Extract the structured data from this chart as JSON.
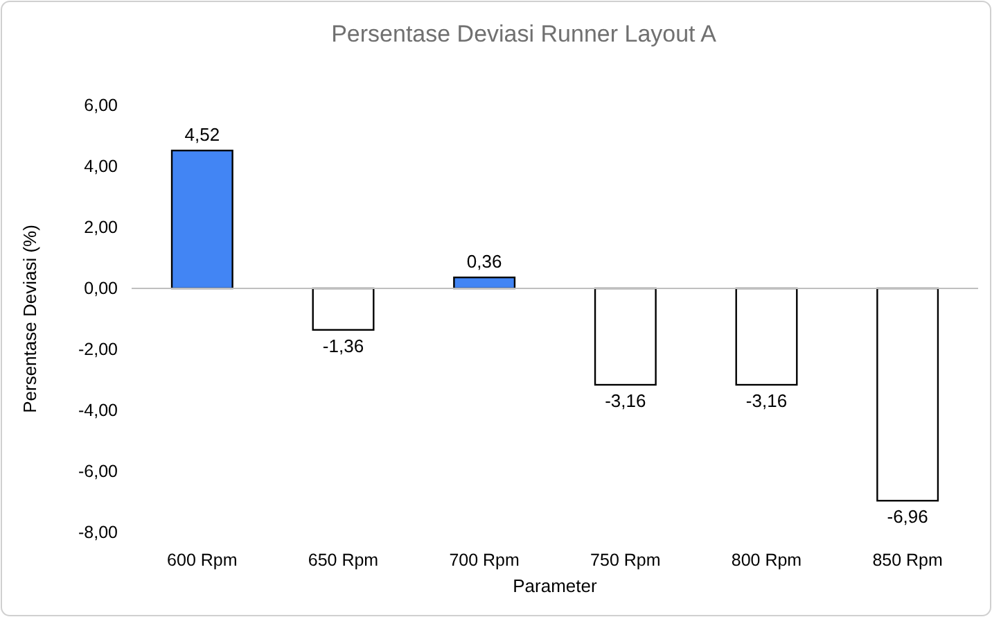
{
  "chart_data": {
    "type": "bar",
    "title": "Persentase Deviasi Runner Layout A",
    "xlabel": "Parameter",
    "ylabel": "Persentase Deviasi (%)",
    "categories": [
      "600 Rpm",
      "650 Rpm",
      "700 Rpm",
      "750 Rpm",
      "800 Rpm",
      "850 Rpm"
    ],
    "values": [
      4.52,
      -1.36,
      0.36,
      -3.16,
      -3.16,
      -6.96
    ],
    "colors": [
      "#4285f4",
      "#ffffff",
      "#4285f4",
      "#ffffff",
      "#ffffff",
      "#ffffff"
    ],
    "value_labels": [
      "4,52",
      "-1,36",
      "0,36",
      "-3,16",
      "-3,16",
      "-6,96"
    ],
    "ylim": [
      -8,
      6
    ],
    "yticks": [
      {
        "value": -8,
        "label": "-8,00"
      },
      {
        "value": -6,
        "label": "-6,00"
      },
      {
        "value": -4,
        "label": "-4,00"
      },
      {
        "value": -2,
        "label": "-2,00"
      },
      {
        "value": 0,
        "label": "0,00"
      },
      {
        "value": 2,
        "label": "2,00"
      },
      {
        "value": 4,
        "label": "4,00"
      },
      {
        "value": 6,
        "label": "6,00"
      }
    ]
  }
}
